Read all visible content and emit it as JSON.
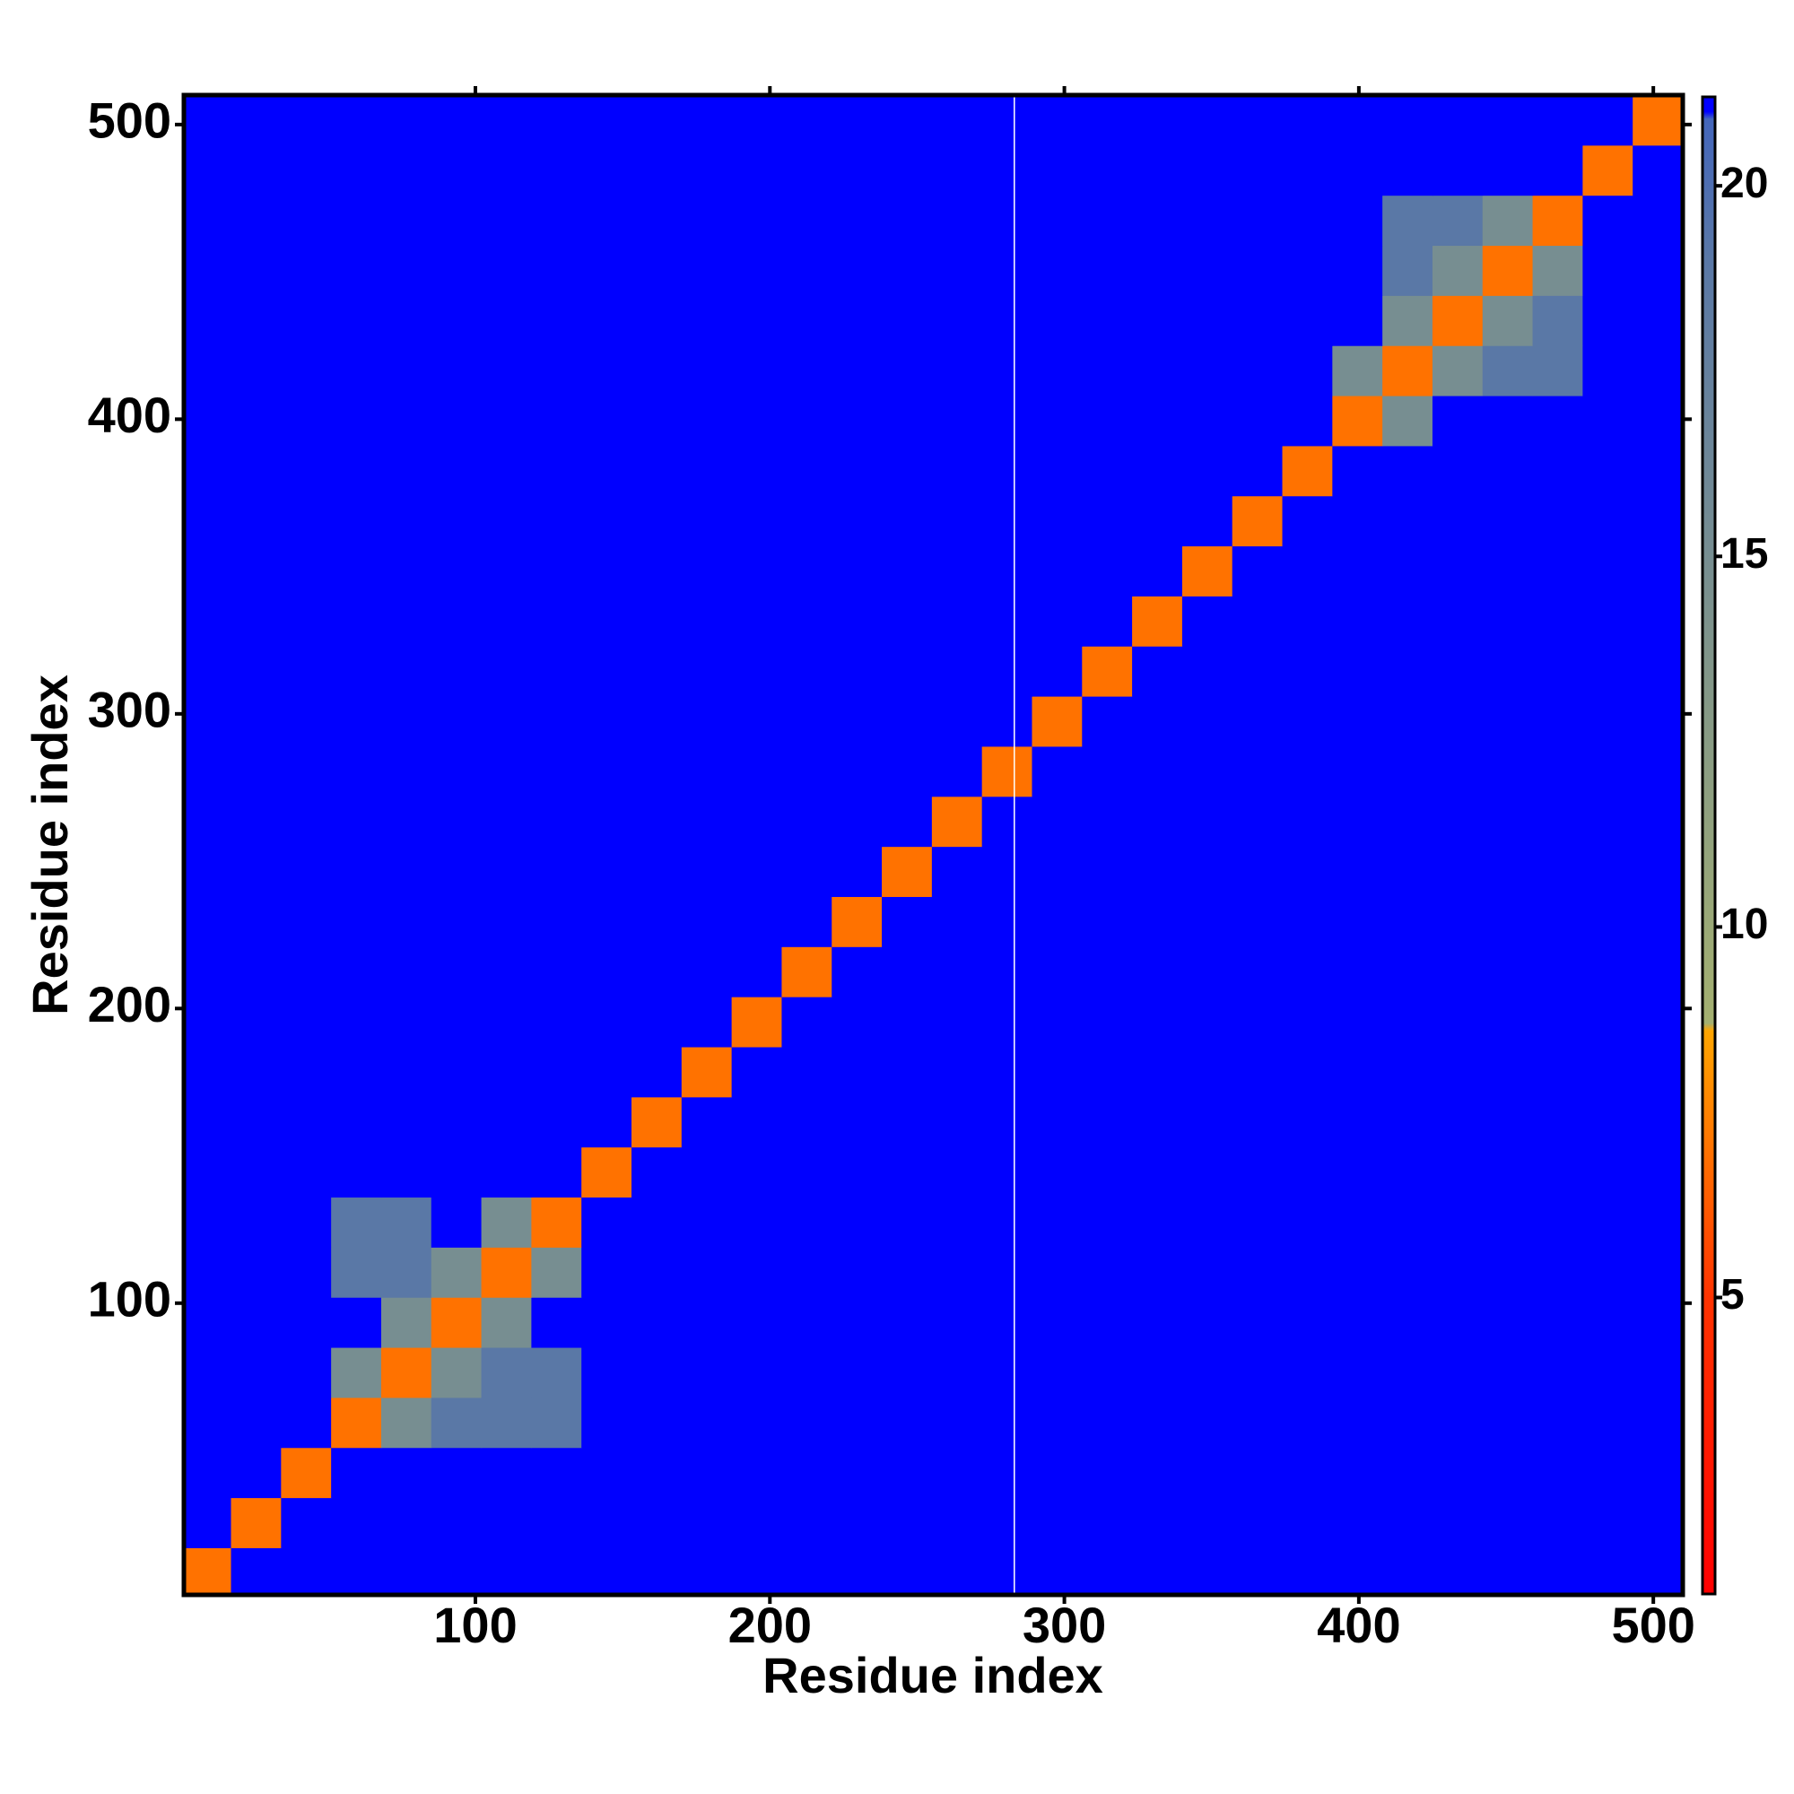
{
  "chart_data": {
    "type": "heatmap",
    "xlabel": "Residue index",
    "ylabel": "Residue index",
    "bins": [
      0,
      17,
      34,
      51,
      68,
      85,
      102,
      119,
      136,
      153,
      170,
      187,
      204,
      221,
      238,
      255,
      272,
      289,
      306,
      323,
      340,
      357,
      374,
      391,
      408,
      425,
      442,
      459,
      476,
      493,
      510
    ],
    "values": [
      [
        7,
        21,
        21,
        21,
        21,
        21,
        21,
        21,
        21,
        21,
        21,
        21,
        21,
        21,
        21,
        21,
        21,
        21,
        21,
        21,
        21,
        21,
        21,
        21,
        21,
        21,
        21,
        21,
        21,
        21
      ],
      [
        21,
        7,
        21,
        21,
        21,
        21,
        21,
        21,
        21,
        21,
        21,
        21,
        21,
        21,
        21,
        21,
        21,
        21,
        21,
        21,
        21,
        21,
        21,
        21,
        21,
        21,
        21,
        21,
        21,
        21
      ],
      [
        21,
        21,
        7,
        21,
        21,
        21,
        21,
        21,
        21,
        21,
        21,
        21,
        21,
        21,
        21,
        21,
        21,
        21,
        21,
        21,
        21,
        21,
        21,
        21,
        21,
        21,
        21,
        21,
        21,
        21
      ],
      [
        21,
        21,
        21,
        7,
        15,
        19,
        19,
        19,
        21,
        21,
        21,
        21,
        21,
        21,
        21,
        21,
        21,
        21,
        21,
        21,
        21,
        21,
        21,
        21,
        21,
        21,
        21,
        21,
        21,
        21
      ],
      [
        21,
        21,
        21,
        15,
        7,
        15,
        19,
        19,
        21,
        21,
        21,
        21,
        21,
        21,
        21,
        21,
        21,
        21,
        21,
        21,
        21,
        21,
        21,
        21,
        21,
        21,
        21,
        21,
        21,
        21
      ],
      [
        21,
        21,
        21,
        21,
        15,
        7,
        15,
        21,
        21,
        21,
        21,
        21,
        21,
        21,
        21,
        21,
        21,
        21,
        21,
        21,
        21,
        21,
        21,
        21,
        21,
        21,
        21,
        21,
        21,
        21
      ],
      [
        21,
        21,
        21,
        19,
        19,
        15,
        7,
        15,
        21,
        21,
        21,
        21,
        21,
        21,
        21,
        21,
        21,
        21,
        21,
        21,
        21,
        21,
        21,
        21,
        21,
        21,
        21,
        21,
        21,
        21
      ],
      [
        21,
        21,
        21,
        19,
        19,
        21,
        15,
        7,
        21,
        21,
        21,
        21,
        21,
        21,
        21,
        21,
        21,
        21,
        21,
        21,
        21,
        21,
        21,
        21,
        21,
        21,
        21,
        21,
        21,
        21
      ],
      [
        21,
        21,
        21,
        21,
        21,
        21,
        21,
        21,
        7,
        21,
        21,
        21,
        21,
        21,
        21,
        21,
        21,
        21,
        21,
        21,
        21,
        21,
        21,
        21,
        21,
        21,
        21,
        21,
        21,
        21
      ],
      [
        21,
        21,
        21,
        21,
        21,
        21,
        21,
        21,
        21,
        7,
        21,
        21,
        21,
        21,
        21,
        21,
        21,
        21,
        21,
        21,
        21,
        21,
        21,
        21,
        21,
        21,
        21,
        21,
        21,
        21
      ],
      [
        21,
        21,
        21,
        21,
        21,
        21,
        21,
        21,
        21,
        21,
        7,
        21,
        21,
        21,
        21,
        21,
        21,
        21,
        21,
        21,
        21,
        21,
        21,
        21,
        21,
        21,
        21,
        21,
        21,
        21
      ],
      [
        21,
        21,
        21,
        21,
        21,
        21,
        21,
        21,
        21,
        21,
        21,
        7,
        21,
        21,
        21,
        21,
        21,
        21,
        21,
        21,
        21,
        21,
        21,
        21,
        21,
        21,
        21,
        21,
        21,
        21
      ],
      [
        21,
        21,
        21,
        21,
        21,
        21,
        21,
        21,
        21,
        21,
        21,
        21,
        7,
        21,
        21,
        21,
        21,
        21,
        21,
        21,
        21,
        21,
        21,
        21,
        21,
        21,
        21,
        21,
        21,
        21
      ],
      [
        21,
        21,
        21,
        21,
        21,
        21,
        21,
        21,
        21,
        21,
        21,
        21,
        21,
        7,
        21,
        21,
        21,
        21,
        21,
        21,
        21,
        21,
        21,
        21,
        21,
        21,
        21,
        21,
        21,
        21
      ],
      [
        21,
        21,
        21,
        21,
        21,
        21,
        21,
        21,
        21,
        21,
        21,
        21,
        21,
        21,
        7,
        21,
        21,
        21,
        21,
        21,
        21,
        21,
        21,
        21,
        21,
        21,
        21,
        21,
        21,
        21
      ],
      [
        21,
        21,
        21,
        21,
        21,
        21,
        21,
        21,
        21,
        21,
        21,
        21,
        21,
        21,
        21,
        7,
        21,
        21,
        21,
        21,
        21,
        21,
        21,
        21,
        21,
        21,
        21,
        21,
        21,
        21
      ],
      [
        21,
        21,
        21,
        21,
        21,
        21,
        21,
        21,
        21,
        21,
        21,
        21,
        21,
        21,
        21,
        21,
        7,
        21,
        21,
        21,
        21,
        21,
        21,
        21,
        21,
        21,
        21,
        21,
        21,
        21
      ],
      [
        21,
        21,
        21,
        21,
        21,
        21,
        21,
        21,
        21,
        21,
        21,
        21,
        21,
        21,
        21,
        21,
        21,
        7,
        21,
        21,
        21,
        21,
        21,
        21,
        21,
        21,
        21,
        21,
        21,
        21
      ],
      [
        21,
        21,
        21,
        21,
        21,
        21,
        21,
        21,
        21,
        21,
        21,
        21,
        21,
        21,
        21,
        21,
        21,
        21,
        7,
        21,
        21,
        21,
        21,
        21,
        21,
        21,
        21,
        21,
        21,
        21
      ],
      [
        21,
        21,
        21,
        21,
        21,
        21,
        21,
        21,
        21,
        21,
        21,
        21,
        21,
        21,
        21,
        21,
        21,
        21,
        21,
        7,
        21,
        21,
        21,
        21,
        21,
        21,
        21,
        21,
        21,
        21
      ],
      [
        21,
        21,
        21,
        21,
        21,
        21,
        21,
        21,
        21,
        21,
        21,
        21,
        21,
        21,
        21,
        21,
        21,
        21,
        21,
        21,
        7,
        21,
        21,
        21,
        21,
        21,
        21,
        21,
        21,
        21
      ],
      [
        21,
        21,
        21,
        21,
        21,
        21,
        21,
        21,
        21,
        21,
        21,
        21,
        21,
        21,
        21,
        21,
        21,
        21,
        21,
        21,
        21,
        7,
        21,
        21,
        21,
        21,
        21,
        21,
        21,
        21
      ],
      [
        21,
        21,
        21,
        21,
        21,
        21,
        21,
        21,
        21,
        21,
        21,
        21,
        21,
        21,
        21,
        21,
        21,
        21,
        21,
        21,
        21,
        21,
        7,
        21,
        21,
        21,
        21,
        21,
        21,
        21
      ],
      [
        21,
        21,
        21,
        21,
        21,
        21,
        21,
        21,
        21,
        21,
        21,
        21,
        21,
        21,
        21,
        21,
        21,
        21,
        21,
        21,
        21,
        21,
        21,
        7,
        15,
        21,
        21,
        21,
        21,
        21
      ],
      [
        21,
        21,
        21,
        21,
        21,
        21,
        21,
        21,
        21,
        21,
        21,
        21,
        21,
        21,
        21,
        21,
        21,
        21,
        21,
        21,
        21,
        21,
        21,
        15,
        7,
        15,
        19,
        19,
        21,
        21
      ],
      [
        21,
        21,
        21,
        21,
        21,
        21,
        21,
        21,
        21,
        21,
        21,
        21,
        21,
        21,
        21,
        21,
        21,
        21,
        21,
        21,
        21,
        21,
        21,
        21,
        15,
        7,
        15,
        19,
        21,
        21
      ],
      [
        21,
        21,
        21,
        21,
        21,
        21,
        21,
        21,
        21,
        21,
        21,
        21,
        21,
        21,
        21,
        21,
        21,
        21,
        21,
        21,
        21,
        21,
        21,
        21,
        19,
        15,
        7,
        15,
        21,
        21
      ],
      [
        21,
        21,
        21,
        21,
        21,
        21,
        21,
        21,
        21,
        21,
        21,
        21,
        21,
        21,
        21,
        21,
        21,
        21,
        21,
        21,
        21,
        21,
        21,
        21,
        19,
        19,
        15,
        7,
        21,
        21
      ],
      [
        21,
        21,
        21,
        21,
        21,
        21,
        21,
        21,
        21,
        21,
        21,
        21,
        21,
        21,
        21,
        21,
        21,
        21,
        21,
        21,
        21,
        21,
        21,
        21,
        21,
        21,
        21,
        21,
        7,
        21
      ],
      [
        21,
        21,
        21,
        21,
        21,
        21,
        21,
        21,
        21,
        21,
        21,
        21,
        21,
        21,
        21,
        21,
        21,
        21,
        21,
        21,
        21,
        21,
        21,
        21,
        21,
        21,
        21,
        21,
        21,
        7
      ]
    ],
    "xlim": [
      1,
      510
    ],
    "ylim": [
      1,
      510
    ],
    "xticks": [
      100,
      200,
      300,
      400,
      500
    ],
    "yticks": [
      100,
      200,
      300,
      400,
      500
    ],
    "colorbar_lim": [
      1,
      21.2
    ],
    "colorbar_ticks": [
      5,
      10,
      15,
      20
    ],
    "colorscale": [
      [
        1,
        "#ff0000"
      ],
      [
        5,
        "#ff3300"
      ],
      [
        8.6,
        "#ffa500"
      ],
      [
        8.7,
        "#a4b070"
      ],
      [
        19,
        "#5a78a6"
      ],
      [
        20.9,
        "#4466bb"
      ],
      [
        21,
        "#0000ff"
      ]
    ],
    "vline": 283,
    "vline_color": "#ffffff"
  }
}
